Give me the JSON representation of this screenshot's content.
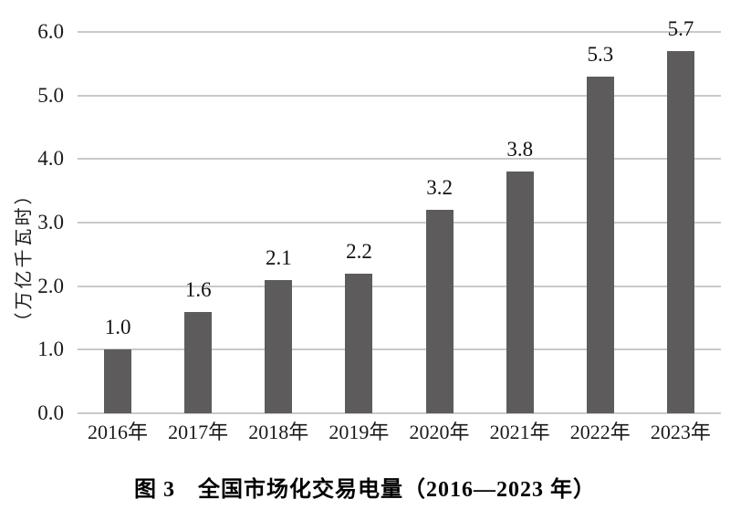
{
  "figure": {
    "caption": "图 3　全国市场化交易电量（2016—2023 年）"
  },
  "chart_data": {
    "type": "bar",
    "title": "图 3　全国市场化交易电量（2016—2023 年）",
    "categories": [
      "2016年",
      "2017年",
      "2018年",
      "2019年",
      "2020年",
      "2021年",
      "2022年",
      "2023年"
    ],
    "values": [
      1.0,
      1.6,
      2.1,
      2.2,
      3.2,
      3.8,
      5.3,
      5.7
    ],
    "value_labels": [
      "1.0",
      "1.6",
      "2.1",
      "2.2",
      "3.2",
      "3.8",
      "5.3",
      "5.7"
    ],
    "xlabel": "",
    "ylabel": "（万亿千瓦时）",
    "ylim": [
      0,
      6
    ],
    "ytick_labels": [
      "0.0",
      "1.0",
      "2.0",
      "3.0",
      "4.0",
      "5.0",
      "6.0"
    ],
    "yticks": [
      0,
      1,
      2,
      3,
      4,
      5,
      6
    ],
    "grid": true,
    "legend": false,
    "colors": {
      "bar": "#5d5b5b",
      "gridline": "#c9c9c9",
      "text": "#1a1a1a",
      "background": "#ffffff"
    }
  }
}
